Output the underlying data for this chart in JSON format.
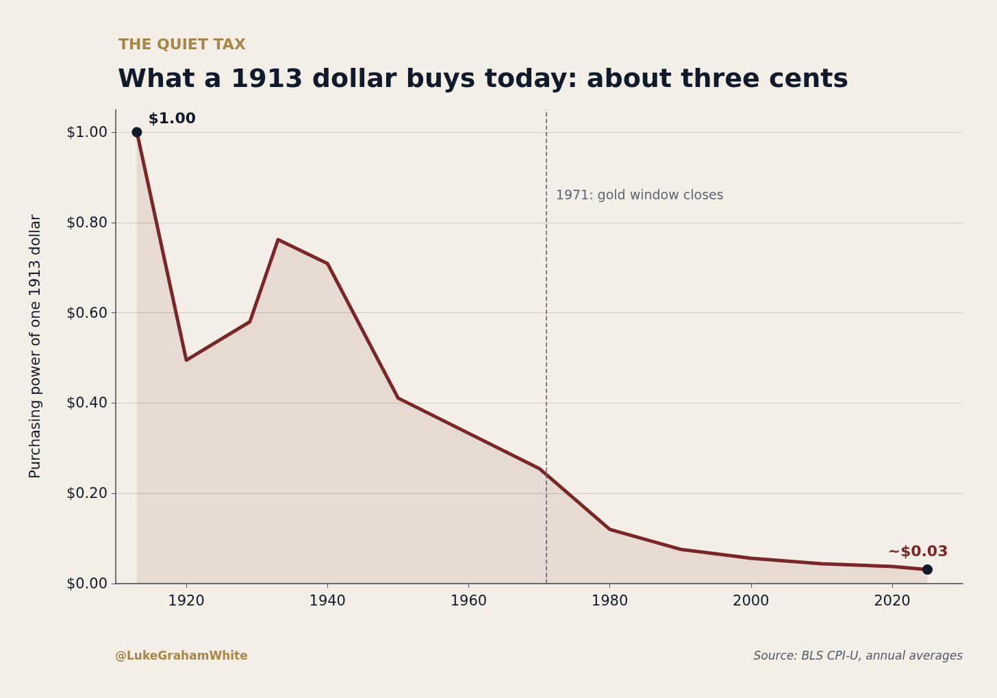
{
  "chart_data": {
    "type": "area",
    "subtitle": "THE QUIET TAX",
    "title": "What a 1913 dollar buys today: about three cents",
    "ylabel": "Purchasing power of one 1913 dollar",
    "x": [
      1913,
      1920,
      1929,
      1933,
      1940,
      1950,
      1970,
      1980,
      1990,
      2000,
      2010,
      2020,
      2025
    ],
    "series": [
      {
        "color": "#7a2626",
        "values": [
          1.0,
          0.495,
          0.58,
          0.762,
          0.709,
          0.411,
          0.255,
          0.12,
          0.076,
          0.056,
          0.044,
          0.038,
          0.031
        ]
      }
    ],
    "xlim": [
      1910,
      2030
    ],
    "xticks": [
      1920,
      1940,
      1960,
      1980,
      2000,
      2020
    ],
    "ylim": [
      0,
      1.05
    ],
    "yticks": [
      {
        "value": 0,
        "label": "$0.00"
      },
      {
        "value": 0.2,
        "label": "$0.20"
      },
      {
        "value": 0.4,
        "label": "$0.40"
      },
      {
        "value": 0.6,
        "label": "$0.60"
      },
      {
        "value": 0.8,
        "label": "$0.80"
      },
      {
        "value": 1,
        "label": "$1.00"
      }
    ],
    "grid": "y",
    "line_style": "solid",
    "ref_lines": [
      {
        "axis": "x",
        "value": 1971,
        "label": "1971: gold window closes",
        "color": "#5b6675",
        "line_style": "dashed"
      }
    ],
    "annotations": [
      {
        "text": "$1.00",
        "x": 1913,
        "y": 1.0
      },
      {
        "text": "~$0.03",
        "x": 2025,
        "y": 0.031
      },
      "@LukeGrahamWhite",
      "Source: BLS CPI-U, annual averages"
    ]
  }
}
